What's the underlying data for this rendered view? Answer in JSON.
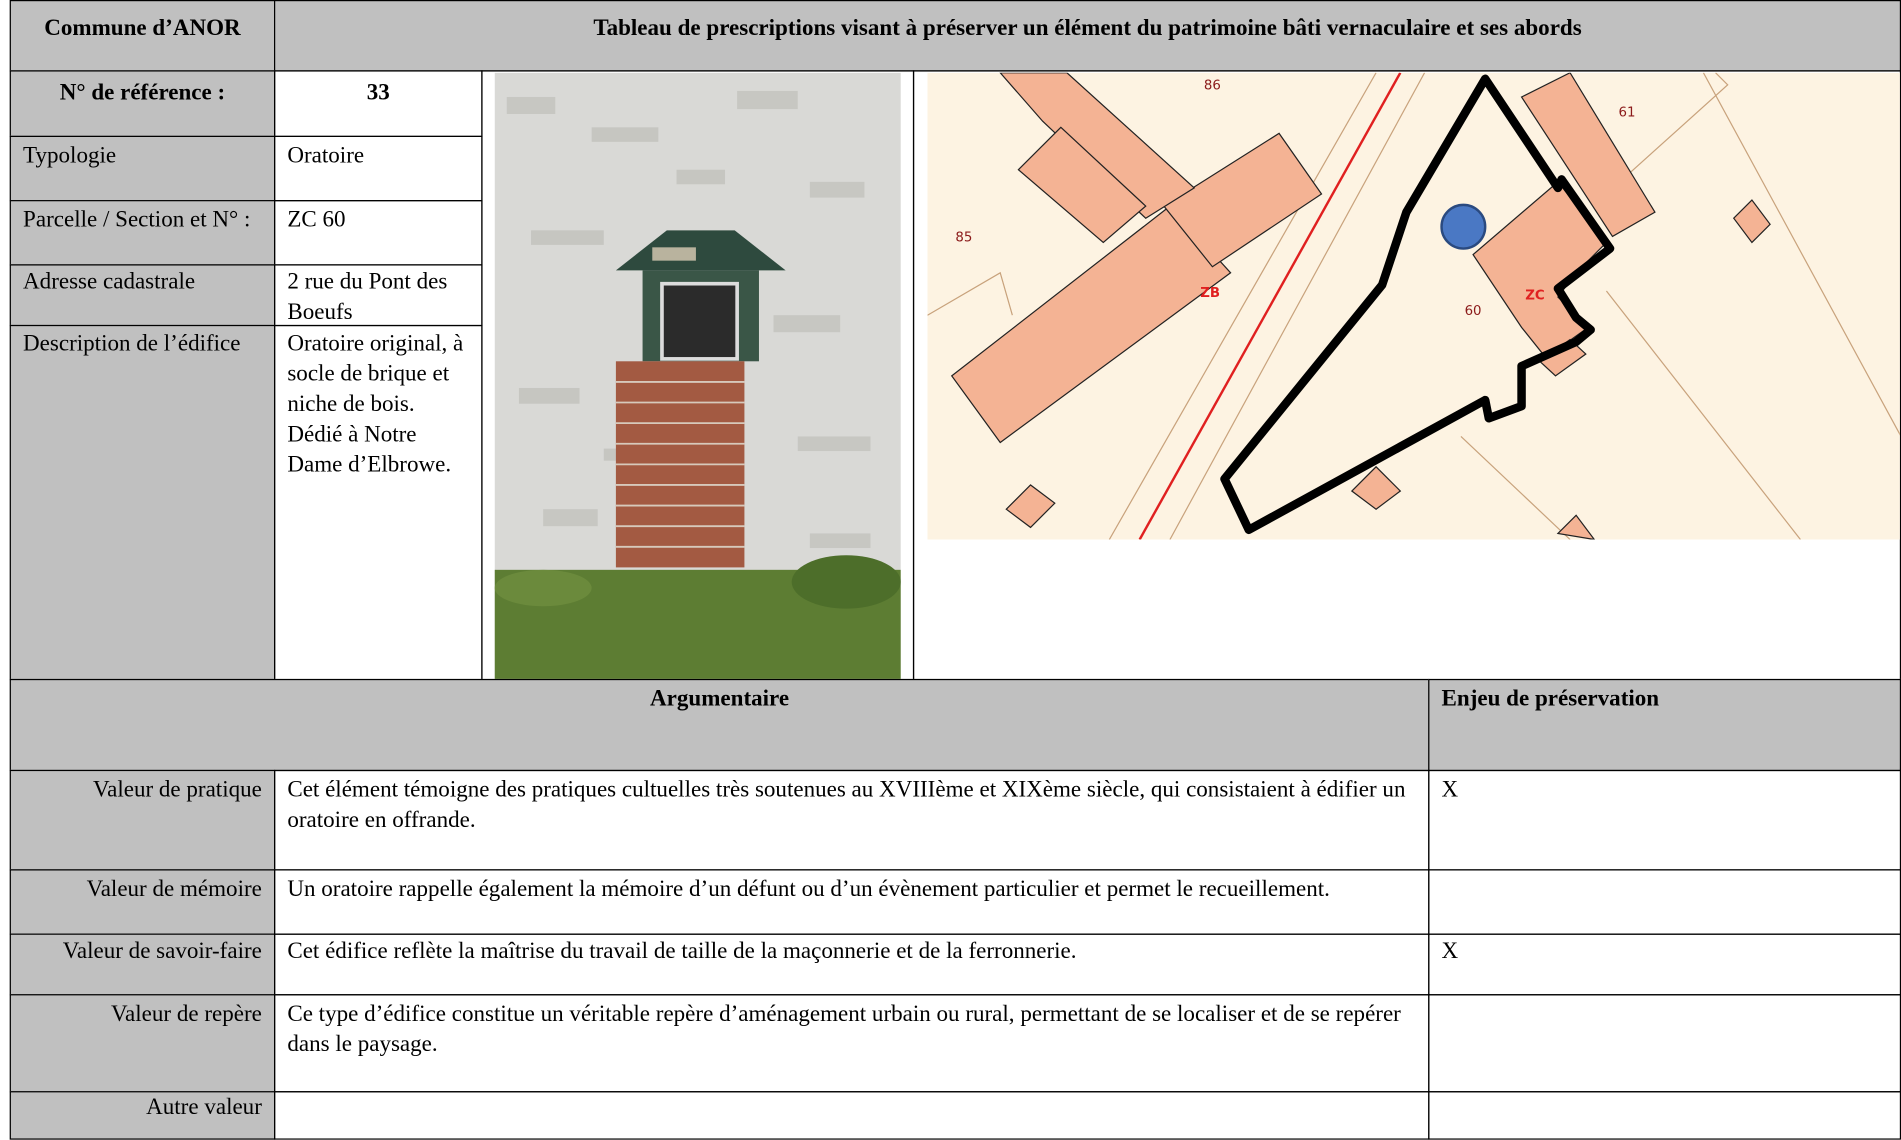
{
  "header": {
    "commune": "Commune d’ANOR",
    "title": "Tableau de prescriptions visant à préserver un élément du patrimoine bâti vernaculaire et ses abords"
  },
  "info": {
    "reference_label": "N° de référence :",
    "reference": "33",
    "rows": [
      {
        "label": "Typologie",
        "value": "Oratoire"
      },
      {
        "label": "Parcelle / Section et N° :",
        "value": "ZC 60"
      },
      {
        "label": "Adresse cadastrale",
        "value": "2 rue du Pont des Boeufs"
      },
      {
        "label": "Description de l’édifice",
        "value": "Oratoire original, à socle de brique et niche de bois. Dédié à Notre Dame d’Elbrowe."
      }
    ]
  },
  "map": {
    "labels": [
      "86",
      "85",
      "61",
      "60",
      "ZB",
      "ZC"
    ]
  },
  "argumentaire": {
    "header": "Argumentaire",
    "enjeu_header": "Enjeu de préservation",
    "rows": [
      {
        "label": "Valeur de pratique",
        "text": "Cet élément témoigne des pratiques cultuelles très soutenues au XVIIIème et XIXème siècle, qui consistaient à édifier un oratoire en offrande.",
        "enjeu": "X"
      },
      {
        "label": "Valeur de mémoire",
        "text": "Un oratoire rappelle également la mémoire d’un défunt ou d’un évènement particulier et permet le recueillement."
      },
      {
        "label": "Valeur de savoir-faire",
        "text": "Cet édifice reflète la maîtrise du travail de taille de la maçonnerie et de la ferronnerie.",
        "enjeu": "X"
      },
      {
        "label": "Valeur de repère",
        "text": "Ce type d’édifice constitue un véritable repère d’aménagement urbain ou rural, permettant de se localiser et de se repérer dans le paysage."
      },
      {
        "label": "Autre valeur"
      }
    ]
  }
}
